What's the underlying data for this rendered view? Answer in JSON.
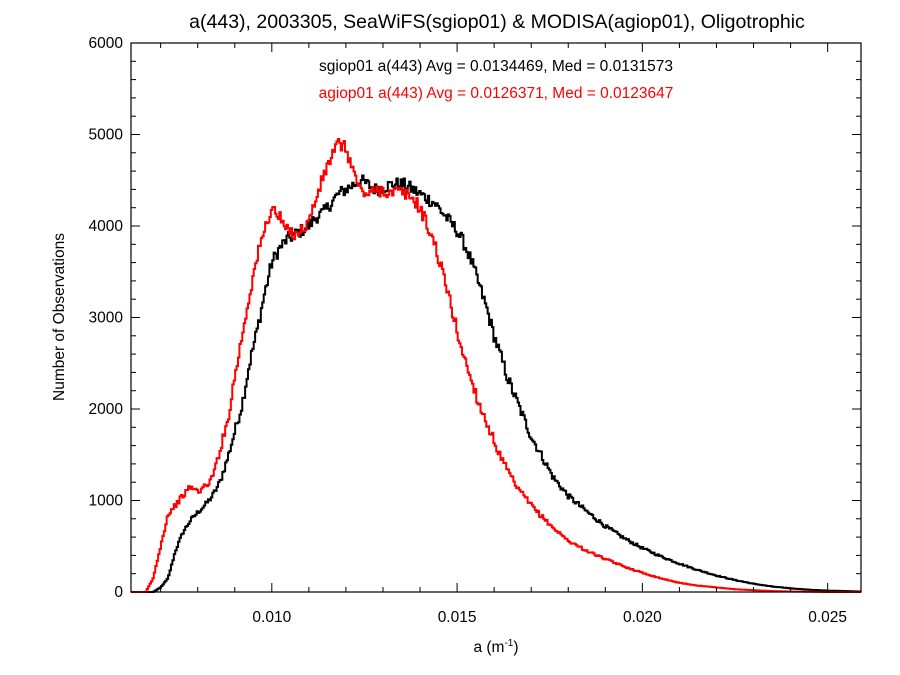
{
  "chart_data": {
    "type": "line",
    "title": "a(443), 2003305, SeaWiFS(sgiop01) & MODISA(agiop01), Oligotrophic",
    "xlabel": "a (m",
    "xlabel_sup": "-1",
    "xlabel_tail": ")",
    "ylabel": "Number of Observations",
    "xlim": [
      0.0062,
      0.0259
    ],
    "ylim": [
      0,
      6000
    ],
    "xticks": [
      0.01,
      0.015,
      0.02,
      0.025
    ],
    "xtick_labels": [
      "0.010",
      "0.015",
      "0.020",
      "0.025"
    ],
    "yticks": [
      0,
      1000,
      2000,
      3000,
      4000,
      5000,
      6000
    ],
    "ytick_labels": [
      "0",
      "1000",
      "2000",
      "3000",
      "4000",
      "5000",
      "6000"
    ],
    "grid": false,
    "annotations": [
      {
        "text": "sgiop01 a(443) Avg = 0.0134469, Med = 0.0131573",
        "color": "#000000"
      },
      {
        "text": "agiop01 a(443) Avg = 0.0126371, Med = 0.0123647",
        "color": "#ff0000"
      }
    ],
    "series": [
      {
        "label": "sgiop01",
        "color": "#000000",
        "x": [
          0.0062,
          0.0068,
          0.007,
          0.0072,
          0.0074,
          0.0076,
          0.0078,
          0.008,
          0.0082,
          0.0084,
          0.0086,
          0.0088,
          0.009,
          0.0092,
          0.0094,
          0.0096,
          0.0098,
          0.01,
          0.0102,
          0.0104,
          0.0106,
          0.0108,
          0.011,
          0.0112,
          0.0114,
          0.0116,
          0.0118,
          0.012,
          0.0122,
          0.0124,
          0.0126,
          0.0128,
          0.013,
          0.0132,
          0.0134,
          0.0136,
          0.0138,
          0.014,
          0.0142,
          0.0144,
          0.0146,
          0.0148,
          0.015,
          0.0152,
          0.0154,
          0.0156,
          0.0158,
          0.016,
          0.0162,
          0.0164,
          0.0166,
          0.0168,
          0.017,
          0.0172,
          0.0174,
          0.0176,
          0.0178,
          0.018,
          0.0185,
          0.019,
          0.0195,
          0.02,
          0.0205,
          0.021,
          0.0215,
          0.022,
          0.0225,
          0.023,
          0.0235,
          0.024,
          0.0245,
          0.025,
          0.0255,
          0.0259
        ],
        "y": [
          0,
          0,
          50,
          150,
          450,
          650,
          780,
          870,
          950,
          1050,
          1200,
          1450,
          1750,
          2050,
          2500,
          2850,
          3250,
          3600,
          3750,
          3850,
          3900,
          3950,
          4000,
          4100,
          4150,
          4250,
          4350,
          4400,
          4450,
          4500,
          4450,
          4400,
          4420,
          4450,
          4460,
          4450,
          4400,
          4350,
          4300,
          4250,
          4150,
          4050,
          3950,
          3800,
          3600,
          3350,
          3100,
          2800,
          2550,
          2300,
          2100,
          1900,
          1700,
          1550,
          1400,
          1250,
          1150,
          1050,
          880,
          720,
          590,
          480,
          390,
          310,
          240,
          180,
          130,
          90,
          60,
          40,
          25,
          15,
          10,
          5
        ]
      },
      {
        "label": "agiop01",
        "color": "#ff0000",
        "x": [
          0.0062,
          0.0066,
          0.0068,
          0.007,
          0.0072,
          0.0074,
          0.0076,
          0.0078,
          0.008,
          0.0082,
          0.0084,
          0.0086,
          0.0088,
          0.009,
          0.0092,
          0.0094,
          0.0096,
          0.0098,
          0.01,
          0.0102,
          0.0104,
          0.0106,
          0.0108,
          0.011,
          0.0112,
          0.0114,
          0.0116,
          0.0118,
          0.012,
          0.0122,
          0.0124,
          0.0126,
          0.0128,
          0.013,
          0.0132,
          0.0134,
          0.0136,
          0.0138,
          0.014,
          0.0142,
          0.0144,
          0.0146,
          0.0148,
          0.015,
          0.0152,
          0.0154,
          0.0156,
          0.0158,
          0.016,
          0.0162,
          0.0164,
          0.0166,
          0.0168,
          0.017,
          0.0172,
          0.0174,
          0.0176,
          0.0178,
          0.018,
          0.0185,
          0.019,
          0.0195,
          0.02,
          0.0205,
          0.021,
          0.0215,
          0.022,
          0.0225,
          0.023,
          0.0235,
          0.024,
          0.0245,
          0.025,
          0.0255,
          0.0259
        ],
        "y": [
          0,
          0,
          150,
          500,
          850,
          950,
          1050,
          1150,
          1100,
          1150,
          1250,
          1550,
          1850,
          2350,
          2800,
          3250,
          3650,
          3950,
          4200,
          4100,
          3950,
          3920,
          3950,
          4050,
          4300,
          4550,
          4750,
          4900,
          4850,
          4600,
          4380,
          4350,
          4380,
          4400,
          4350,
          4380,
          4350,
          4300,
          4200,
          4000,
          3800,
          3500,
          3200,
          2850,
          2550,
          2300,
          2050,
          1850,
          1650,
          1450,
          1300,
          1150,
          1050,
          950,
          860,
          780,
          700,
          630,
          560,
          450,
          360,
          280,
          210,
          150,
          100,
          70,
          50,
          30,
          20,
          10,
          5,
          3,
          0,
          0,
          0
        ]
      }
    ]
  }
}
